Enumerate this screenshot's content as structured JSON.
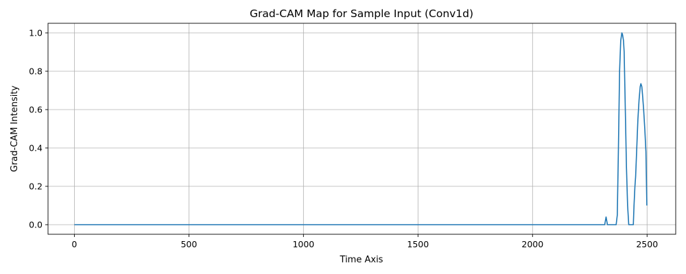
{
  "chart_data": {
    "type": "line",
    "title": "Grad-CAM Map for Sample Input (Conv1d)",
    "xlabel": "Time Axis",
    "ylabel": "Grad-CAM Intensity",
    "xlim": [
      -115,
      2625
    ],
    "ylim": [
      -0.05,
      1.05
    ],
    "xticks": [
      0,
      500,
      1000,
      1500,
      2000,
      2500
    ],
    "yticks": [
      0.0,
      0.2,
      0.4,
      0.6,
      0.8,
      1.0
    ],
    "xtick_labels": [
      "0",
      "500",
      "1000",
      "1500",
      "2000",
      "2500"
    ],
    "ytick_labels": [
      "0.0",
      "0.2",
      "0.4",
      "0.6",
      "0.8",
      "1.0"
    ],
    "grid": true,
    "line_color": "#1f77b4",
    "series": [
      {
        "x": [
          0,
          2315,
          2318,
          2321,
          2324,
          2327,
          2330,
          2365,
          2370,
          2375,
          2380,
          2385,
          2390,
          2393,
          2397,
          2400,
          2405,
          2410,
          2415,
          2420,
          2430,
          2440,
          2443,
          2447,
          2450,
          2455,
          2460,
          2465,
          2470,
          2473,
          2477,
          2480,
          2485,
          2490,
          2495,
          2499
        ],
        "y": [
          0,
          0,
          0.02,
          0.04,
          0.02,
          0,
          0,
          0,
          0.05,
          0.4,
          0.8,
          0.96,
          1.0,
          0.99,
          0.96,
          0.9,
          0.6,
          0.3,
          0.1,
          0,
          0,
          0,
          0.1,
          0.2,
          0.25,
          0.4,
          0.55,
          0.65,
          0.72,
          0.735,
          0.72,
          0.68,
          0.6,
          0.5,
          0.38,
          0.1
        ]
      }
    ]
  }
}
